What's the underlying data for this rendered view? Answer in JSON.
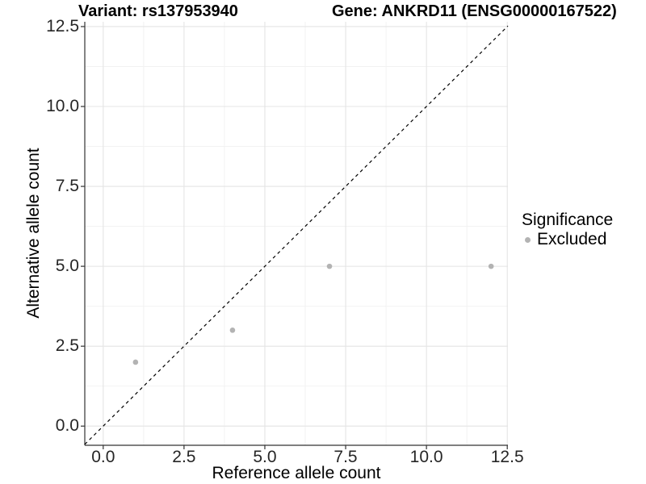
{
  "chart_data": {
    "type": "scatter",
    "titles": {
      "left": "Variant: rs137953940",
      "right": "Gene: ANKRD11 (ENSG00000167522)"
    },
    "xlabel": "Reference allele count",
    "ylabel": "Alternative allele count",
    "xlim": [
      -0.57,
      12.52
    ],
    "ylim": [
      -0.6,
      12.65
    ],
    "xticks": [
      0,
      2.5,
      5,
      7.5,
      10,
      12.5
    ],
    "xtick_labels": [
      "0.0",
      "2.5",
      "5.0",
      "7.5",
      "10.0",
      "12.5"
    ],
    "yticks": [
      0,
      2.5,
      5,
      7.5,
      10,
      12.5
    ],
    "ytick_labels": [
      "0.0",
      "2.5",
      "5.0",
      "7.5",
      "10.0",
      "12.5"
    ],
    "minor_xticks": [
      1.25,
      3.75,
      6.25,
      8.75,
      11.25
    ],
    "minor_yticks": [
      1.25,
      3.75,
      6.25,
      8.75,
      11.25
    ],
    "grid": true,
    "identity_line": {
      "style": "dashed",
      "color": "#000000"
    },
    "series": [
      {
        "name": "Excluded",
        "color": "#b3b3b3",
        "points": [
          [
            1,
            2
          ],
          [
            4,
            3
          ],
          [
            7,
            5
          ],
          [
            12,
            5
          ]
        ]
      }
    ],
    "legend": {
      "title": "Significance",
      "position": "right",
      "items": [
        {
          "label": "Excluded",
          "color": "#b3b3b3"
        }
      ]
    },
    "colors": {
      "grid_major": "#e4e4e4",
      "grid_minor": "#f1f1f1",
      "axis_line": "#333333",
      "tick_mark": "#333333",
      "point": "#b3b3b3"
    }
  }
}
